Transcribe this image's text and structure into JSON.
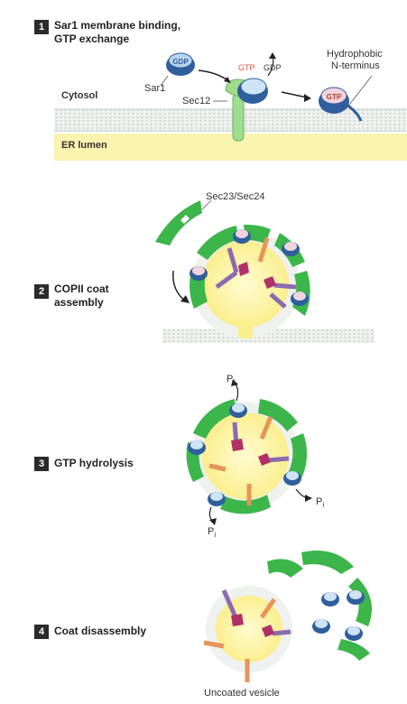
{
  "steps": [
    {
      "number": "1",
      "title_line1": "Sar1 membrane binding,",
      "title_line2": "GTP exchange"
    },
    {
      "number": "2",
      "title_line1": "COPII coat",
      "title_line2": "assembly"
    },
    {
      "number": "3",
      "title_line1": "GTP hydrolysis",
      "title_line2": ""
    },
    {
      "number": "4",
      "title_line1": "Coat disassembly",
      "title_line2": ""
    }
  ],
  "labels": {
    "cytosol": "Cytosol",
    "er_lumen": "ER lumen",
    "sar1": "Sar1",
    "sec12": "Sec12",
    "gdp_badge": "GDP",
    "gtp_text": "GTP",
    "gdp_text": "GDP",
    "gtp_badge": "GTP",
    "hydrophobic_line1": "Hydrophobic",
    "hydrophobic_line2": "N-terminus",
    "sec23_24": "Sec23/Sec24",
    "pi": "P",
    "pi_sub": "i",
    "uncoated_vesicle": "Uncoated vesicle"
  },
  "colors": {
    "coat_green": "#3cb54a",
    "sec12_green": "#9fdc8c",
    "lumen_yellow": "#fbf4b0",
    "vesicle_core": "#fff6a8",
    "sar1_blue": "#2f5f9c",
    "cargo_purple": "#8b6bb0",
    "cargo_orange": "#e8935a",
    "cargo_magenta": "#b0306a"
  }
}
